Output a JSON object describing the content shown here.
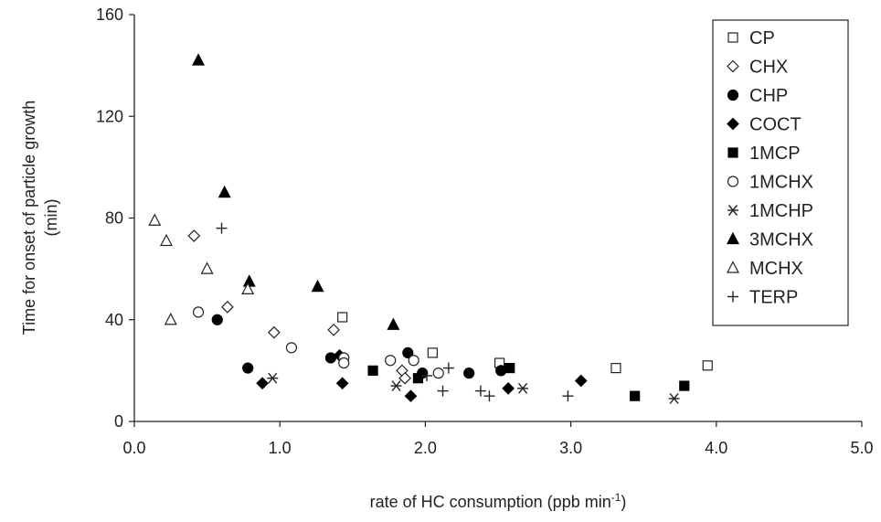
{
  "chart_data": {
    "type": "scatter",
    "xlabel": "rate of HC consumption (ppb min",
    "xlabel_sup": "-1",
    "xlabel_end": ")",
    "ylabel_line1": "Time for onset of particle growth",
    "ylabel_line2": "(min)",
    "xlim": [
      0,
      5
    ],
    "ylim": [
      0,
      160
    ],
    "x_ticks": [
      0,
      1,
      2,
      3,
      4,
      5
    ],
    "x_tick_labels": [
      "0.0",
      "1.0",
      "2.0",
      "3.0",
      "4.0",
      "5.0"
    ],
    "y_ticks": [
      0,
      40,
      80,
      120,
      160
    ],
    "y_tick_labels": [
      "0",
      "40",
      "80",
      "120",
      "160"
    ],
    "grid": false,
    "legend_position": "top-right",
    "series": [
      {
        "name": "CP",
        "marker": "square-open",
        "points": [
          [
            1.43,
            41
          ],
          [
            2.05,
            27
          ],
          [
            2.51,
            23
          ],
          [
            3.31,
            21
          ],
          [
            3.94,
            22
          ]
        ]
      },
      {
        "name": "CHX",
        "marker": "diamond-open",
        "points": [
          [
            0.41,
            73
          ],
          [
            0.64,
            45
          ],
          [
            0.96,
            35
          ],
          [
            1.37,
            36
          ],
          [
            1.84,
            20
          ],
          [
            1.86,
            17
          ]
        ]
      },
      {
        "name": "CHP",
        "marker": "circle-filled",
        "points": [
          [
            0.57,
            40
          ],
          [
            0.78,
            21
          ],
          [
            1.35,
            25
          ],
          [
            1.88,
            27
          ],
          [
            1.98,
            19
          ],
          [
            2.3,
            19
          ],
          [
            2.52,
            20
          ]
        ]
      },
      {
        "name": "COCT",
        "marker": "diamond-filled",
        "points": [
          [
            0.88,
            15
          ],
          [
            1.41,
            26
          ],
          [
            1.43,
            15
          ],
          [
            1.9,
            10
          ],
          [
            2.57,
            13
          ],
          [
            3.07,
            16
          ]
        ]
      },
      {
        "name": "1MCP",
        "marker": "square-filled",
        "points": [
          [
            1.64,
            20
          ],
          [
            1.95,
            17
          ],
          [
            2.58,
            21
          ],
          [
            3.44,
            10
          ],
          [
            3.78,
            14
          ]
        ]
      },
      {
        "name": "1MCHX",
        "marker": "circle-open",
        "points": [
          [
            0.44,
            43
          ],
          [
            1.08,
            29
          ],
          [
            1.44,
            25
          ],
          [
            1.44,
            23
          ],
          [
            1.76,
            24
          ],
          [
            1.92,
            24
          ],
          [
            2.09,
            19
          ]
        ]
      },
      {
        "name": "1MCHP",
        "marker": "asterisk",
        "points": [
          [
            0.95,
            17
          ],
          [
            1.8,
            14
          ],
          [
            2.67,
            13
          ],
          [
            3.71,
            9
          ]
        ]
      },
      {
        "name": "3MCHX",
        "marker": "triangle-filled",
        "points": [
          [
            0.44,
            142
          ],
          [
            0.62,
            90
          ],
          [
            0.79,
            55
          ],
          [
            1.26,
            53
          ],
          [
            1.78,
            38
          ]
        ]
      },
      {
        "name": "MCHX",
        "marker": "triangle-open",
        "points": [
          [
            0.14,
            79
          ],
          [
            0.22,
            71
          ],
          [
            0.25,
            40
          ],
          [
            0.5,
            60
          ],
          [
            0.78,
            52
          ]
        ]
      },
      {
        "name": "TERP",
        "marker": "plus",
        "points": [
          [
            0.6,
            76
          ],
          [
            2.01,
            18
          ],
          [
            2.12,
            12
          ],
          [
            2.16,
            21
          ],
          [
            2.38,
            12
          ],
          [
            2.44,
            10
          ],
          [
            2.98,
            10
          ]
        ]
      }
    ]
  }
}
